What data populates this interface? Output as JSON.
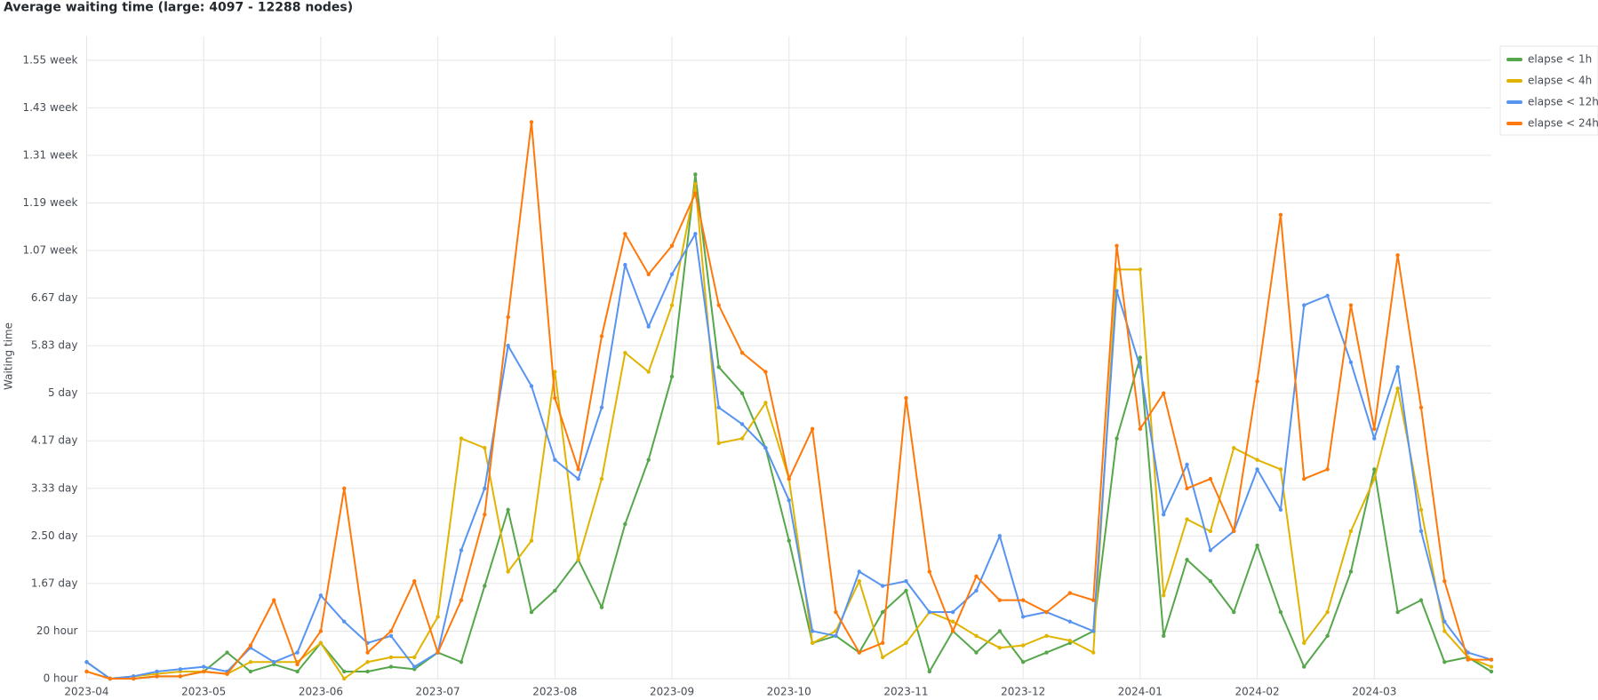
{
  "chart_data": {
    "type": "line",
    "title": "Average waiting time (large: 4097 - 12288 nodes)",
    "y_label": "Waiting time",
    "grid": true,
    "x": [
      0,
      0.2,
      0.4,
      0.6,
      0.8,
      1,
      1.2,
      1.4,
      1.6,
      1.8,
      2,
      2.2,
      2.4,
      2.6,
      2.8,
      3,
      3.2,
      3.4,
      3.6,
      3.8,
      4,
      4.2,
      4.4,
      4.6,
      4.8,
      5,
      5.2,
      5.4,
      5.6,
      5.8,
      6,
      6.2,
      6.4,
      6.6,
      6.8,
      7,
      7.2,
      7.4,
      7.6,
      7.8,
      8,
      8.2,
      8.4,
      8.6,
      8.8,
      9,
      9.2,
      9.4,
      9.6,
      9.8,
      10,
      10.2,
      10.4,
      10.6,
      10.8,
      11,
      11.2,
      11.4,
      11.6,
      11.8,
      12
    ],
    "xlim": [
      0,
      12
    ],
    "xticks": [
      {
        "value": 0,
        "label": "2023-04"
      },
      {
        "value": 1,
        "label": "2023-05"
      },
      {
        "value": 2,
        "label": "2023-06"
      },
      {
        "value": 3,
        "label": "2023-07"
      },
      {
        "value": 4,
        "label": "2023-08"
      },
      {
        "value": 5,
        "label": "2023-09"
      },
      {
        "value": 6,
        "label": "2023-10"
      },
      {
        "value": 7,
        "label": "2023-11"
      },
      {
        "value": 8,
        "label": "2023-12"
      },
      {
        "value": 9,
        "label": "2024-01"
      },
      {
        "value": 10,
        "label": "2024-02"
      },
      {
        "value": 11,
        "label": "2024-03"
      }
    ],
    "ylim": [
      0,
      270
    ],
    "yticks": [
      {
        "value": 0,
        "label": "0 hour"
      },
      {
        "value": 20,
        "label": "20 hour"
      },
      {
        "value": 40,
        "label": "1.67 day"
      },
      {
        "value": 60,
        "label": "2.50 day"
      },
      {
        "value": 80,
        "label": "3.33 day"
      },
      {
        "value": 100,
        "label": "4.17 day"
      },
      {
        "value": 120,
        "label": "5 day"
      },
      {
        "value": 140,
        "label": "5.83 day"
      },
      {
        "value": 160,
        "label": "6.67 day"
      },
      {
        "value": 180,
        "label": "1.07 week"
      },
      {
        "value": 200,
        "label": "1.19 week"
      },
      {
        "value": 220,
        "label": "1.31 week"
      },
      {
        "value": 240,
        "label": "1.43 week"
      },
      {
        "value": 260,
        "label": "1.55 week"
      }
    ],
    "series": [
      {
        "name": "elapse < 1h",
        "color": "#56a64b",
        "values": [
          7,
          0,
          0,
          1,
          1,
          3,
          11,
          3,
          6,
          3,
          15,
          3,
          3,
          5,
          4,
          11,
          7,
          39,
          71,
          28,
          37,
          50,
          30,
          65,
          92,
          127,
          212,
          131,
          120,
          97,
          58,
          15,
          18,
          11,
          28,
          37,
          3,
          20,
          11,
          20,
          7,
          11,
          15,
          20,
          101,
          135,
          18,
          50,
          41,
          28,
          56,
          28,
          5,
          18,
          45,
          88,
          28,
          33,
          7,
          9,
          3
        ]
      },
      {
        "name": "elapse < 4h",
        "color": "#e0b400",
        "values": [
          3,
          0,
          1,
          2,
          3,
          3,
          2,
          7,
          7,
          7,
          15,
          0,
          7,
          9,
          9,
          26,
          101,
          97,
          45,
          58,
          129,
          50,
          84,
          137,
          129,
          157,
          208,
          99,
          101,
          116,
          84,
          15,
          20,
          41,
          9,
          15,
          28,
          24,
          18,
          13,
          14,
          18,
          16,
          11,
          172,
          172,
          35,
          67,
          62,
          97,
          92,
          88,
          15,
          28,
          62,
          84,
          122,
          71,
          20,
          9,
          5
        ]
      },
      {
        "name": "elapse < 12h",
        "color": "#5794f2",
        "values": [
          7,
          0,
          1,
          3,
          4,
          5,
          3,
          13,
          7,
          11,
          35,
          24,
          15,
          18,
          5,
          11,
          54,
          80,
          140,
          123,
          92,
          84,
          114,
          174,
          148,
          170,
          187,
          114,
          107,
          97,
          75,
          20,
          18,
          45,
          39,
          41,
          28,
          28,
          37,
          60,
          26,
          28,
          24,
          20,
          163,
          131,
          69,
          90,
          54,
          62,
          88,
          71,
          157,
          161,
          133,
          101,
          131,
          62,
          24,
          11,
          8
        ]
      },
      {
        "name": "elapse < 24h",
        "color": "#ff780a",
        "values": [
          3,
          0,
          0,
          1,
          1,
          3,
          2,
          14,
          33,
          6,
          20,
          80,
          11,
          20,
          41,
          11,
          33,
          69,
          152,
          234,
          118,
          88,
          144,
          187,
          170,
          182,
          204,
          157,
          137,
          129,
          84,
          105,
          28,
          11,
          15,
          118,
          45,
          20,
          43,
          33,
          33,
          28,
          36,
          33,
          182,
          105,
          120,
          80,
          84,
          62,
          125,
          195,
          84,
          88,
          157,
          105,
          178,
          114,
          41,
          8,
          8
        ]
      }
    ]
  }
}
